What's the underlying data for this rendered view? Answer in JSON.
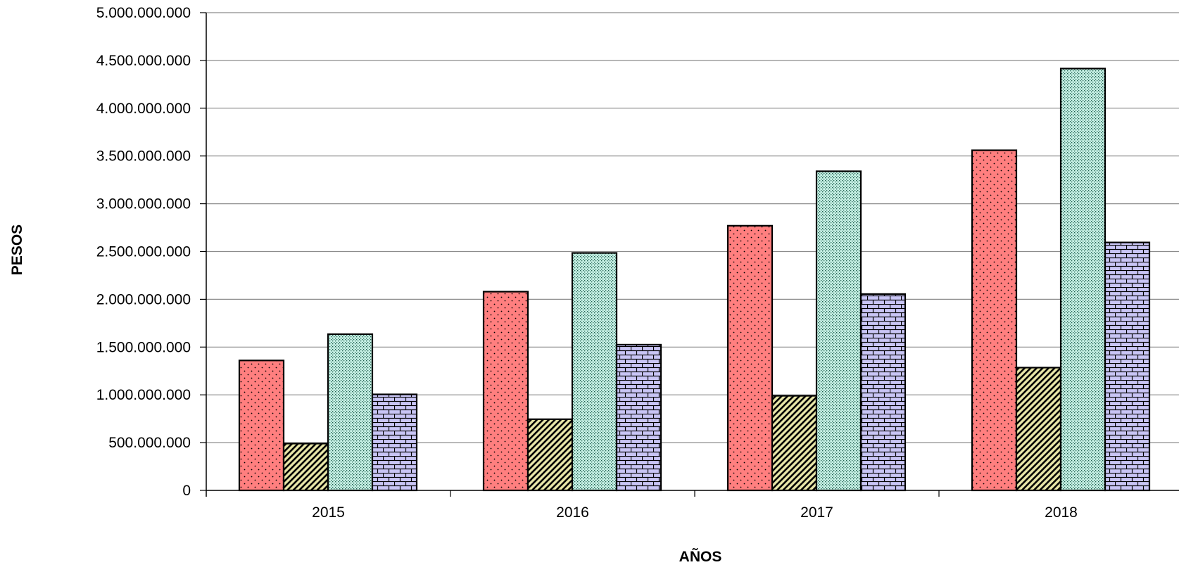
{
  "chart_data": {
    "type": "bar",
    "title": "",
    "xlabel": "AÑOS",
    "ylabel": "PESOS",
    "categories": [
      "2015",
      "2016",
      "2017",
      "2018"
    ],
    "ylim": [
      0,
      5000000000
    ],
    "yticks": [
      0,
      500000000,
      1000000000,
      1500000000,
      2000000000,
      2500000000,
      3000000000,
      3500000000,
      4000000000,
      4500000000,
      5000000000
    ],
    "ytick_labels": [
      "0",
      "500.000.000",
      "1.000.000.000",
      "1.500.000.000",
      "2.000.000.000",
      "2.500.000.000",
      "3.000.000.000",
      "3.500.000.000",
      "4.000.000.000",
      "4.500.000.000",
      "5.000.000.000"
    ],
    "grid": true,
    "legend": "none",
    "series": [
      {
        "color": "#ff7f7f",
        "pattern": "dots",
        "values": [
          1360000000,
          2080000000,
          2770000000,
          3560000000
        ]
      },
      {
        "color": "#e8e6a8",
        "pattern": "diagonal-stripes",
        "values": [
          490000000,
          745000000,
          990000000,
          1285000000
        ]
      },
      {
        "color": "#c8f2e6",
        "pattern": "dense-dots",
        "values": [
          1635000000,
          2485000000,
          3340000000,
          4415000000
        ]
      },
      {
        "color": "#c9c5f5",
        "pattern": "bricks",
        "values": [
          1005000000,
          1525000000,
          2055000000,
          2595000000
        ]
      }
    ]
  }
}
